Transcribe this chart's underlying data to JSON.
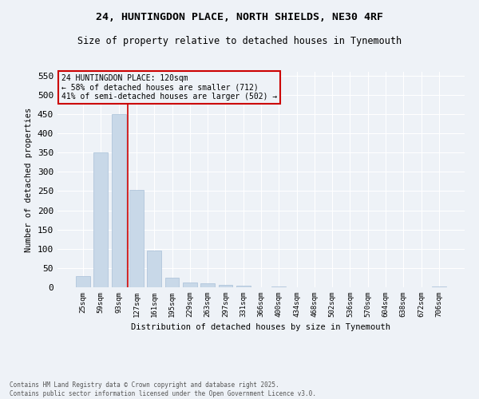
{
  "title_line1": "24, HUNTINGDON PLACE, NORTH SHIELDS, NE30 4RF",
  "title_line2": "Size of property relative to detached houses in Tynemouth",
  "xlabel": "Distribution of detached houses by size in Tynemouth",
  "ylabel": "Number of detached properties",
  "bar_color": "#c8d8e8",
  "bar_edgecolor": "#a8c0d8",
  "categories": [
    "25sqm",
    "59sqm",
    "93sqm",
    "127sqm",
    "161sqm",
    "195sqm",
    "229sqm",
    "263sqm",
    "297sqm",
    "331sqm",
    "366sqm",
    "400sqm",
    "434sqm",
    "468sqm",
    "502sqm",
    "536sqm",
    "570sqm",
    "604sqm",
    "638sqm",
    "672sqm",
    "706sqm"
  ],
  "values": [
    30,
    350,
    450,
    253,
    95,
    25,
    13,
    10,
    7,
    5,
    0,
    3,
    0,
    0,
    0,
    0,
    0,
    0,
    0,
    0,
    3
  ],
  "ylim": [
    0,
    560
  ],
  "yticks": [
    0,
    50,
    100,
    150,
    200,
    250,
    300,
    350,
    400,
    450,
    500,
    550
  ],
  "vline_x": 2.5,
  "vline_color": "#cc0000",
  "annotation_title": "24 HUNTINGDON PLACE: 120sqm",
  "annotation_line1": "← 58% of detached houses are smaller (712)",
  "annotation_line2": "41% of semi-detached houses are larger (502) →",
  "annotation_box_edgecolor": "#cc0000",
  "footer_line1": "Contains HM Land Registry data © Crown copyright and database right 2025.",
  "footer_line2": "Contains public sector information licensed under the Open Government Licence v3.0.",
  "background_color": "#eef2f7",
  "grid_color": "#ffffff"
}
